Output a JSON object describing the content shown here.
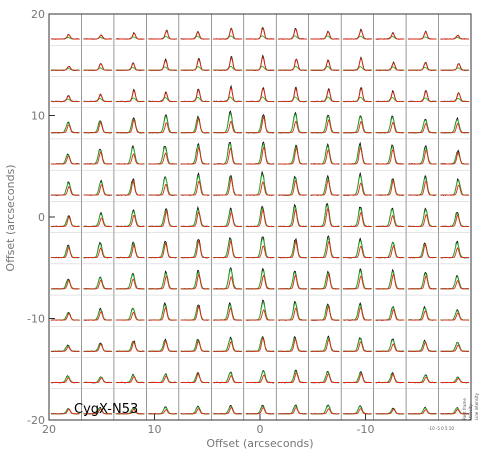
{
  "chart_data": {
    "type": "line",
    "title": "",
    "source_label": "CygX-N53",
    "xlabel": "Offset (arcseconds)",
    "ylabel": "Offset (arcseconds)",
    "xlim": [
      20,
      -20
    ],
    "ylim": [
      -20,
      20
    ],
    "x_ticks": [
      {
        "value": 20,
        "label": "20"
      },
      {
        "value": 10,
        "label": "10"
      },
      {
        "value": 0,
        "label": "0"
      },
      {
        "value": -10,
        "label": "-10"
      }
    ],
    "y_ticks": [
      {
        "value": 20,
        "label": "20"
      },
      {
        "value": 10,
        "label": "10"
      },
      {
        "value": 0,
        "label": "0"
      },
      {
        "value": -10,
        "label": "-10"
      },
      {
        "value": -20,
        "label": "-20"
      }
    ],
    "grid": {
      "columns": 13,
      "rows": 13
    },
    "series": [
      {
        "color": "#000000"
      },
      {
        "color": "#2db82d"
      },
      {
        "color": "#dd2a14"
      }
    ],
    "inset": {
      "axis_text": "-10 -5 0 5 10",
      "side_lines": [
        "Rest frame",
        "Velocity",
        "Line intensity"
      ]
    }
  }
}
